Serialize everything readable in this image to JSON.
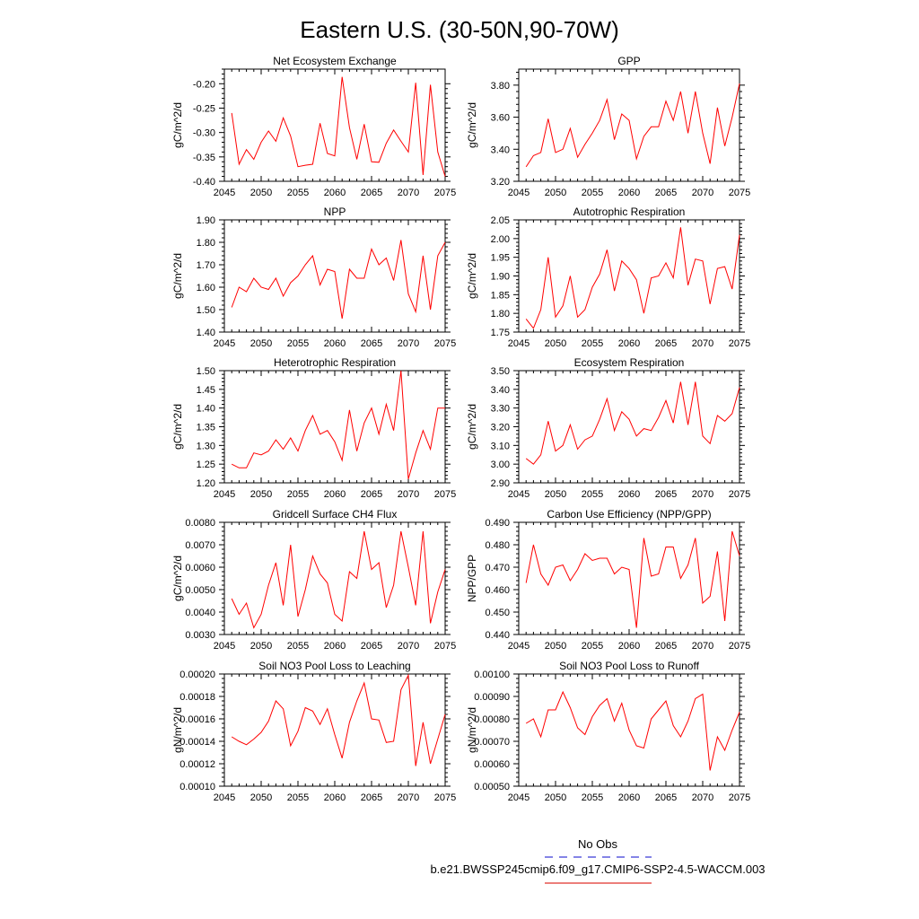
{
  "figure": {
    "title": "Eastern U.S. (30-50N,90-70W)",
    "legend": {
      "obs_label": "No Obs",
      "obs_color": "#3b3bd8",
      "model_label": "b.e21.BWSSP245cmip6.f09_g17.CMIP6-SSP2-4.5-WACCM.003",
      "model_color": "#e0302a"
    }
  },
  "chart_data": [
    {
      "type": "line",
      "title": "Net Ecosystem Exchange",
      "ylabel": "gC/m^2/d",
      "xlim": [
        2045,
        2075
      ],
      "ylim": [
        -0.4,
        -0.17
      ],
      "x_ticks": [
        "2045",
        "2050",
        "2055",
        "2060",
        "2065",
        "2070",
        "2075"
      ],
      "y_ticks": [
        "-0.40",
        "-0.35",
        "-0.30",
        "-0.25",
        "-0.20"
      ],
      "y_tick_values": [
        -0.4,
        -0.35,
        -0.3,
        -0.25,
        -0.2
      ],
      "x": [
        2046,
        2047,
        2048,
        2049,
        2050,
        2051,
        2052,
        2053,
        2054,
        2055,
        2056,
        2057,
        2058,
        2059,
        2060,
        2061,
        2062,
        2063,
        2064,
        2065,
        2066,
        2067,
        2068,
        2069,
        2070,
        2071,
        2072,
        2073,
        2074,
        2075
      ],
      "series": [
        {
          "color": "#ff0000",
          "values": [
            -0.26,
            -0.365,
            -0.335,
            -0.355,
            -0.32,
            -0.297,
            -0.318,
            -0.27,
            -0.307,
            -0.37,
            -0.367,
            -0.365,
            -0.281,
            -0.343,
            -0.348,
            -0.186,
            -0.29,
            -0.355,
            -0.283,
            -0.36,
            -0.361,
            -0.322,
            -0.295,
            -0.318,
            -0.34,
            -0.198,
            -0.387,
            -0.202,
            -0.34,
            -0.39
          ]
        }
      ]
    },
    {
      "type": "line",
      "title": "GPP",
      "ylabel": "gC/m^2/d",
      "xlim": [
        2045,
        2075
      ],
      "ylim": [
        3.2,
        3.9
      ],
      "x_ticks": [
        "2045",
        "2050",
        "2055",
        "2060",
        "2065",
        "2070",
        "2075"
      ],
      "y_ticks": [
        "3.20",
        "3.40",
        "3.60",
        "3.80"
      ],
      "y_tick_values": [
        3.2,
        3.4,
        3.6,
        3.8
      ],
      "x": [
        2046,
        2047,
        2048,
        2049,
        2050,
        2051,
        2052,
        2053,
        2054,
        2055,
        2056,
        2057,
        2058,
        2059,
        2060,
        2061,
        2062,
        2063,
        2064,
        2065,
        2066,
        2067,
        2068,
        2069,
        2070,
        2071,
        2072,
        2073,
        2074,
        2075
      ],
      "series": [
        {
          "color": "#ff0000",
          "values": [
            3.29,
            3.36,
            3.38,
            3.59,
            3.38,
            3.4,
            3.53,
            3.35,
            3.43,
            3.5,
            3.58,
            3.71,
            3.46,
            3.62,
            3.58,
            3.34,
            3.48,
            3.54,
            3.54,
            3.7,
            3.58,
            3.76,
            3.5,
            3.76,
            3.5,
            3.31,
            3.66,
            3.42,
            3.6,
            3.81
          ]
        }
      ]
    },
    {
      "type": "line",
      "title": "NPP",
      "ylabel": "gC/m^2/d",
      "xlim": [
        2045,
        2075
      ],
      "ylim": [
        1.4,
        1.9
      ],
      "x_ticks": [
        "2045",
        "2050",
        "2055",
        "2060",
        "2065",
        "2070",
        "2075"
      ],
      "y_ticks": [
        "1.40",
        "1.50",
        "1.60",
        "1.70",
        "1.80",
        "1.90"
      ],
      "y_tick_values": [
        1.4,
        1.5,
        1.6,
        1.7,
        1.8,
        1.9
      ],
      "x": [
        2046,
        2047,
        2048,
        2049,
        2050,
        2051,
        2052,
        2053,
        2054,
        2055,
        2056,
        2057,
        2058,
        2059,
        2060,
        2061,
        2062,
        2063,
        2064,
        2065,
        2066,
        2067,
        2068,
        2069,
        2070,
        2071,
        2072,
        2073,
        2074,
        2075
      ],
      "series": [
        {
          "color": "#ff0000",
          "values": [
            1.51,
            1.6,
            1.58,
            1.64,
            1.6,
            1.59,
            1.64,
            1.56,
            1.62,
            1.65,
            1.7,
            1.74,
            1.61,
            1.68,
            1.67,
            1.46,
            1.68,
            1.64,
            1.64,
            1.77,
            1.7,
            1.73,
            1.63,
            1.81,
            1.57,
            1.49,
            1.74,
            1.5,
            1.74,
            1.8
          ]
        }
      ]
    },
    {
      "type": "line",
      "title": "Autotrophic Respiration",
      "ylabel": "gC/m^2/d",
      "xlim": [
        2045,
        2075
      ],
      "ylim": [
        1.75,
        2.05
      ],
      "x_ticks": [
        "2045",
        "2050",
        "2055",
        "2060",
        "2065",
        "2070",
        "2075"
      ],
      "y_ticks": [
        "1.75",
        "1.80",
        "1.85",
        "1.90",
        "1.95",
        "2.00",
        "2.05"
      ],
      "y_tick_values": [
        1.75,
        1.8,
        1.85,
        1.9,
        1.95,
        2.0,
        2.05
      ],
      "x": [
        2046,
        2047,
        2048,
        2049,
        2050,
        2051,
        2052,
        2053,
        2054,
        2055,
        2056,
        2057,
        2058,
        2059,
        2060,
        2061,
        2062,
        2063,
        2064,
        2065,
        2066,
        2067,
        2068,
        2069,
        2070,
        2071,
        2072,
        2073,
        2074,
        2075
      ],
      "series": [
        {
          "color": "#ff0000",
          "values": [
            1.785,
            1.76,
            1.81,
            1.95,
            1.79,
            1.82,
            1.9,
            1.79,
            1.81,
            1.87,
            1.905,
            1.97,
            1.86,
            1.94,
            1.92,
            1.89,
            1.8,
            1.895,
            1.9,
            1.935,
            1.895,
            2.03,
            1.875,
            1.945,
            1.94,
            1.825,
            1.92,
            1.925,
            1.865,
            2.01
          ]
        }
      ]
    },
    {
      "type": "line",
      "title": "Heterotrophic Respiration",
      "ylabel": "gC/m^2/d",
      "xlim": [
        2045,
        2075
      ],
      "ylim": [
        1.2,
        1.5
      ],
      "x_ticks": [
        "2045",
        "2050",
        "2055",
        "2060",
        "2065",
        "2070",
        "2075"
      ],
      "y_ticks": [
        "1.20",
        "1.25",
        "1.30",
        "1.35",
        "1.40",
        "1.45",
        "1.50"
      ],
      "y_tick_values": [
        1.2,
        1.25,
        1.3,
        1.35,
        1.4,
        1.45,
        1.5
      ],
      "x": [
        2046,
        2047,
        2048,
        2049,
        2050,
        2051,
        2052,
        2053,
        2054,
        2055,
        2056,
        2057,
        2058,
        2059,
        2060,
        2061,
        2062,
        2063,
        2064,
        2065,
        2066,
        2067,
        2068,
        2069,
        2070,
        2071,
        2072,
        2073,
        2074,
        2075
      ],
      "series": [
        {
          "color": "#ff0000",
          "values": [
            1.25,
            1.24,
            1.24,
            1.28,
            1.275,
            1.285,
            1.315,
            1.29,
            1.32,
            1.285,
            1.34,
            1.38,
            1.33,
            1.34,
            1.31,
            1.26,
            1.395,
            1.285,
            1.36,
            1.4,
            1.33,
            1.41,
            1.34,
            1.5,
            1.21,
            1.28,
            1.34,
            1.29,
            1.4,
            1.4
          ]
        }
      ]
    },
    {
      "type": "line",
      "title": "Ecosystem Respiration",
      "ylabel": "gC/m^2/d",
      "xlim": [
        2045,
        2075
      ],
      "ylim": [
        2.9,
        3.5
      ],
      "x_ticks": [
        "2045",
        "2050",
        "2055",
        "2060",
        "2065",
        "2070",
        "2075"
      ],
      "y_ticks": [
        "2.90",
        "3.00",
        "3.10",
        "3.20",
        "3.30",
        "3.40",
        "3.50"
      ],
      "y_tick_values": [
        2.9,
        3.0,
        3.1,
        3.2,
        3.3,
        3.4,
        3.5
      ],
      "x": [
        2046,
        2047,
        2048,
        2049,
        2050,
        2051,
        2052,
        2053,
        2054,
        2055,
        2056,
        2057,
        2058,
        2059,
        2060,
        2061,
        2062,
        2063,
        2064,
        2065,
        2066,
        2067,
        2068,
        2069,
        2070,
        2071,
        2072,
        2073,
        2074,
        2075
      ],
      "series": [
        {
          "color": "#ff0000",
          "values": [
            3.03,
            3.0,
            3.05,
            3.23,
            3.07,
            3.1,
            3.21,
            3.08,
            3.13,
            3.15,
            3.24,
            3.35,
            3.18,
            3.28,
            3.24,
            3.15,
            3.19,
            3.18,
            3.25,
            3.34,
            3.22,
            3.44,
            3.21,
            3.44,
            3.15,
            3.11,
            3.26,
            3.23,
            3.27,
            3.41
          ]
        }
      ]
    },
    {
      "type": "line",
      "title": "Gridcell Surface CH4 Flux",
      "ylabel": "gC/m^2/d",
      "xlim": [
        2045,
        2075
      ],
      "ylim": [
        0.003,
        0.008
      ],
      "x_ticks": [
        "2045",
        "2050",
        "2055",
        "2060",
        "2065",
        "2070",
        "2075"
      ],
      "y_ticks": [
        "0.0030",
        "0.0040",
        "0.0050",
        "0.0060",
        "0.0070",
        "0.0080"
      ],
      "y_tick_values": [
        0.003,
        0.004,
        0.005,
        0.006,
        0.007,
        0.008
      ],
      "x": [
        2046,
        2047,
        2048,
        2049,
        2050,
        2051,
        2052,
        2053,
        2054,
        2055,
        2056,
        2057,
        2058,
        2059,
        2060,
        2061,
        2062,
        2063,
        2064,
        2065,
        2066,
        2067,
        2068,
        2069,
        2070,
        2071,
        2072,
        2073,
        2074,
        2075
      ],
      "series": [
        {
          "color": "#ff0000",
          "values": [
            0.0046,
            0.0039,
            0.0044,
            0.0033,
            0.0039,
            0.0052,
            0.0062,
            0.0043,
            0.007,
            0.0038,
            0.005,
            0.0065,
            0.0057,
            0.0053,
            0.0039,
            0.0036,
            0.0058,
            0.0055,
            0.0076,
            0.0059,
            0.0062,
            0.0042,
            0.0052,
            0.0076,
            0.006,
            0.0043,
            0.0076,
            0.0035,
            0.0049,
            0.0059
          ]
        }
      ]
    },
    {
      "type": "line",
      "title": "Carbon Use Efficiency (NPP/GPP)",
      "ylabel": "NPP/GPP",
      "xlim": [
        2045,
        2075
      ],
      "ylim": [
        0.44,
        0.49
      ],
      "x_ticks": [
        "2045",
        "2050",
        "2055",
        "2060",
        "2065",
        "2070",
        "2075"
      ],
      "y_ticks": [
        "0.440",
        "0.450",
        "0.460",
        "0.470",
        "0.480",
        "0.490"
      ],
      "y_tick_values": [
        0.44,
        0.45,
        0.46,
        0.47,
        0.48,
        0.49
      ],
      "x": [
        2046,
        2047,
        2048,
        2049,
        2050,
        2051,
        2052,
        2053,
        2054,
        2055,
        2056,
        2057,
        2058,
        2059,
        2060,
        2061,
        2062,
        2063,
        2064,
        2065,
        2066,
        2067,
        2068,
        2069,
        2070,
        2071,
        2072,
        2073,
        2074,
        2075
      ],
      "series": [
        {
          "color": "#ff0000",
          "values": [
            0.463,
            0.48,
            0.467,
            0.462,
            0.47,
            0.471,
            0.464,
            0.469,
            0.476,
            0.473,
            0.474,
            0.474,
            0.467,
            0.47,
            0.469,
            0.443,
            0.483,
            0.466,
            0.467,
            0.479,
            0.479,
            0.465,
            0.471,
            0.483,
            0.454,
            0.457,
            0.477,
            0.446,
            0.486,
            0.475
          ]
        }
      ]
    },
    {
      "type": "line",
      "title": "Soil NO3 Pool Loss to Leaching",
      "ylabel": "gN/m^2/d",
      "xlim": [
        2045,
        2075
      ],
      "ylim": [
        0.0001,
        0.0002
      ],
      "x_ticks": [
        "2045",
        "2050",
        "2055",
        "2060",
        "2065",
        "2070",
        "2075"
      ],
      "y_ticks": [
        "0.00010",
        "0.00012",
        "0.00014",
        "0.00016",
        "0.00018",
        "0.00020"
      ],
      "y_tick_values": [
        0.0001,
        0.00012,
        0.00014,
        0.00016,
        0.00018,
        0.0002
      ],
      "x": [
        2046,
        2047,
        2048,
        2049,
        2050,
        2051,
        2052,
        2053,
        2054,
        2055,
        2056,
        2057,
        2058,
        2059,
        2060,
        2061,
        2062,
        2063,
        2064,
        2065,
        2066,
        2067,
        2068,
        2069,
        2070,
        2071,
        2072,
        2073,
        2074,
        2075
      ],
      "series": [
        {
          "color": "#ff0000",
          "values": [
            0.000144,
            0.00014,
            0.000137,
            0.000142,
            0.000148,
            0.000158,
            0.000176,
            0.000169,
            0.000136,
            0.000149,
            0.00017,
            0.000167,
            0.000155,
            0.000169,
            0.000146,
            0.000125,
            0.000157,
            0.000176,
            0.000192,
            0.00016,
            0.000159,
            0.000139,
            0.00014,
            0.000186,
            0.000199,
            0.000118,
            0.000157,
            0.00012,
            0.000142,
            0.000164
          ]
        }
      ]
    },
    {
      "type": "line",
      "title": "Soil NO3 Pool Loss to Runoff",
      "ylabel": "gN/m^2/d",
      "xlim": [
        2045,
        2075
      ],
      "ylim": [
        0.0005,
        0.001
      ],
      "x_ticks": [
        "2045",
        "2050",
        "2055",
        "2060",
        "2065",
        "2070",
        "2075"
      ],
      "y_ticks": [
        "0.00050",
        "0.00060",
        "0.00070",
        "0.00080",
        "0.00090",
        "0.00100"
      ],
      "y_tick_values": [
        0.0005,
        0.0006,
        0.0007,
        0.0008,
        0.0009,
        0.001
      ],
      "x": [
        2046,
        2047,
        2048,
        2049,
        2050,
        2051,
        2052,
        2053,
        2054,
        2055,
        2056,
        2057,
        2058,
        2059,
        2060,
        2061,
        2062,
        2063,
        2064,
        2065,
        2066,
        2067,
        2068,
        2069,
        2070,
        2071,
        2072,
        2073,
        2074,
        2075
      ],
      "series": [
        {
          "color": "#ff0000",
          "values": [
            0.00078,
            0.0008,
            0.00072,
            0.00084,
            0.00084,
            0.00092,
            0.00085,
            0.00076,
            0.00073,
            0.00081,
            0.00086,
            0.00089,
            0.00079,
            0.00087,
            0.00075,
            0.00068,
            0.00067,
            0.0008,
            0.00084,
            0.00088,
            0.00077,
            0.00072,
            0.00079,
            0.00089,
            0.00091,
            0.00057,
            0.00072,
            0.00066,
            0.00075,
            0.00083
          ]
        }
      ]
    }
  ]
}
